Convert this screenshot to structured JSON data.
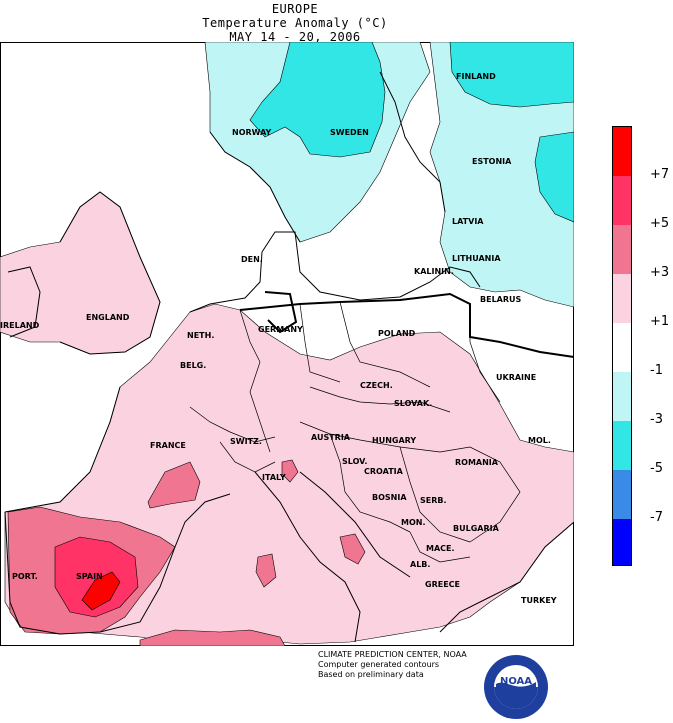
{
  "header": {
    "region": "EUROPE",
    "variable": "Temperature Anomaly (°C)",
    "period": "MAY 14 - 20, 2006"
  },
  "legend": {
    "ticks": [
      "+7",
      "+5",
      "+3",
      "+1",
      "-1",
      "-3",
      "-5",
      "-7"
    ],
    "colors": [
      "#ff0000",
      "#ff3366",
      "#f07590",
      "#fad2e0",
      "#ffffff",
      "#bff5f5",
      "#33e6e6",
      "#3a8ae8",
      "#0000ff"
    ]
  },
  "countries": {
    "norway": "NORWAY",
    "sweden": "SWEDEN",
    "finland": "FINLAND",
    "estonia": "ESTONIA",
    "latvia": "LATVIA",
    "lithuania": "LITHUANIA",
    "kaliningrad": "KALININ.",
    "belarus": "BELARUS",
    "denmark": "DEN.",
    "ireland": "IRELAND",
    "england": "ENGLAND",
    "neth": "NETH.",
    "germany": "GERMANY",
    "poland": "POLAND",
    "belg": "BELG.",
    "ukraine": "UKRAINE",
    "czech": "CZECH.",
    "slovak": "SLOVAK.",
    "france": "FRANCE",
    "switz": "SWITZ.",
    "austria": "AUSTRIA",
    "hungary": "HUNGARY",
    "mol": "MOL.",
    "romania": "ROMANIA",
    "slov": "SLOV.",
    "croatia": "CROATIA",
    "italy": "ITALY",
    "bosnia": "BOSNIA",
    "serb": "SERB.",
    "bulgaria": "BULGARIA",
    "mon": "MON.",
    "mace": "MACE.",
    "alb": "ALB.",
    "greece": "GREECE",
    "turkey": "TURKEY",
    "port": "PORT.",
    "spain": "SPAIN"
  },
  "credits": {
    "line1": "CLIMATE PREDICTION CENTER, NOAA",
    "line2": "Computer generated contours",
    "line3": "Based on preliminary data"
  },
  "logo": {
    "text": "NOAA"
  }
}
